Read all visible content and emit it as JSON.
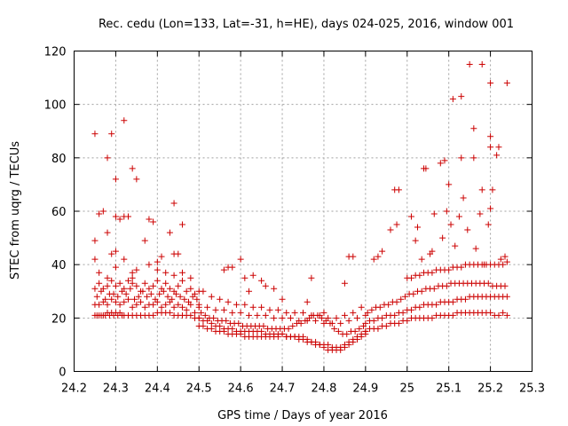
{
  "chart_data": {
    "type": "scatter",
    "title": "Rec. cedu (Lon=133, Lat=-31, h=HE), days 024-025, 2016, window 001",
    "xlabel": "GPS time / Days of year 2016",
    "ylabel": "STEC from uqrg / TECUs",
    "xlim": [
      24.2,
      25.3
    ],
    "ylim": [
      0,
      120
    ],
    "xticks": [
      "24.2",
      "24.3",
      "24.4",
      "24.5",
      "24.6",
      "24.7",
      "24.8",
      "24.9",
      "25",
      "25.1",
      "25.2",
      "25.3"
    ],
    "yticks": [
      "0",
      "20",
      "40",
      "60",
      "80",
      "100",
      "120"
    ],
    "grid": true,
    "marker": "plus",
    "color": "#cc0000",
    "series": [
      {
        "name": "STEC",
        "x": [
          24.25,
          24.255,
          24.26,
          24.265,
          24.27,
          24.275,
          24.28,
          24.285,
          24.29,
          24.295,
          24.3,
          24.305,
          24.31,
          24.315,
          24.32,
          24.33,
          24.34,
          24.35,
          24.36,
          24.37,
          24.38,
          24.39,
          24.4,
          24.41,
          24.42,
          24.43,
          24.44,
          24.45,
          24.46,
          24.47,
          24.48,
          24.49,
          24.5,
          24.25,
          24.26,
          24.27,
          24.28,
          24.29,
          24.3,
          24.31,
          24.32,
          24.33,
          24.34,
          24.35,
          24.36,
          24.37,
          24.38,
          24.39,
          24.4,
          24.41,
          24.42,
          24.43,
          24.44,
          24.45,
          24.46,
          24.47,
          24.48,
          24.49,
          24.5,
          24.255,
          24.265,
          24.275,
          24.285,
          24.295,
          24.305,
          24.315,
          24.325,
          24.335,
          24.345,
          24.355,
          24.365,
          24.375,
          24.385,
          24.395,
          24.405,
          24.415,
          24.425,
          24.435,
          24.445,
          24.455,
          24.465,
          24.475,
          24.485,
          24.495,
          24.25,
          24.26,
          24.27,
          24.28,
          24.29,
          24.3,
          24.31,
          24.32,
          24.33,
          24.34,
          24.35,
          24.36,
          24.37,
          24.38,
          24.39,
          24.4,
          24.41,
          24.42,
          24.43,
          24.44,
          24.45,
          24.46,
          24.47,
          24.48,
          24.49,
          24.5,
          24.25,
          24.26,
          24.28,
          24.3,
          24.32,
          24.34,
          24.38,
          24.4,
          24.42,
          24.44,
          24.46,
          24.48,
          24.25,
          24.26,
          24.28,
          24.29,
          24.3,
          24.31,
          24.32,
          24.34,
          24.35,
          24.37,
          24.38,
          24.4,
          24.41,
          24.43,
          24.44,
          24.45,
          24.5,
          24.51,
          24.52,
          24.53,
          24.54,
          24.55,
          24.56,
          24.57,
          24.58,
          24.59,
          24.6,
          24.61,
          24.62,
          24.63,
          24.64,
          24.65,
          24.66,
          24.67,
          24.68,
          24.69,
          24.7,
          24.71,
          24.72,
          24.73,
          24.74,
          24.75,
          24.76,
          24.77,
          24.78,
          24.79,
          24.8,
          24.81,
          24.82,
          24.83,
          24.84,
          24.85,
          24.86,
          24.87,
          24.88,
          24.89,
          24.9,
          24.5,
          24.51,
          24.52,
          24.53,
          24.54,
          24.55,
          24.56,
          24.57,
          24.58,
          24.59,
          24.6,
          24.61,
          24.62,
          24.63,
          24.64,
          24.65,
          24.66,
          24.67,
          24.68,
          24.69,
          24.7,
          24.71,
          24.72,
          24.73,
          24.74,
          24.75,
          24.76,
          24.77,
          24.78,
          24.79,
          24.8,
          24.81,
          24.82,
          24.83,
          24.84,
          24.85,
          24.86,
          24.87,
          24.88,
          24.89,
          24.9,
          24.505,
          24.515,
          24.525,
          24.535,
          24.545,
          24.555,
          24.565,
          24.575,
          24.585,
          24.595,
          24.605,
          24.615,
          24.625,
          24.635,
          24.645,
          24.655,
          24.665,
          24.675,
          24.685,
          24.695,
          24.705,
          24.715,
          24.725,
          24.735,
          24.745,
          24.755,
          24.765,
          24.775,
          24.785,
          24.795,
          24.805,
          24.815,
          24.825,
          24.835,
          24.845,
          24.855,
          24.865,
          24.875,
          24.885,
          24.895,
          24.5,
          24.52,
          24.54,
          24.56,
          24.58,
          24.6,
          24.62,
          24.64,
          24.66,
          24.68,
          24.7,
          24.72,
          24.74,
          24.76,
          24.78,
          24.8,
          24.82,
          24.84,
          24.86,
          24.88,
          24.9,
          24.51,
          24.53,
          24.55,
          24.57,
          24.59,
          24.61,
          24.63,
          24.65,
          24.67,
          24.69,
          24.71,
          24.73,
          24.75,
          24.77,
          24.79,
          24.81,
          24.83,
          24.85,
          24.87,
          24.89,
          24.56,
          24.57,
          24.58,
          24.6,
          24.61,
          24.62,
          24.63,
          24.65,
          24.66,
          24.68,
          24.7,
          24.76,
          24.77,
          24.8,
          24.85,
          24.86,
          24.9,
          24.91,
          24.92,
          24.93,
          24.94,
          24.95,
          24.96,
          24.97,
          24.98,
          24.99,
          25.0,
          25.01,
          25.02,
          25.03,
          25.04,
          25.05,
          25.06,
          25.07,
          25.08,
          25.09,
          25.1,
          25.11,
          25.12,
          25.13,
          25.14,
          25.15,
          25.16,
          25.17,
          25.18,
          25.19,
          25.2,
          25.21,
          25.22,
          25.23,
          25.24,
          24.9,
          24.91,
          24.92,
          24.93,
          24.94,
          24.95,
          24.96,
          24.97,
          24.98,
          24.99,
          25.0,
          25.01,
          25.02,
          25.03,
          25.04,
          25.05,
          25.06,
          25.07,
          25.08,
          25.09,
          25.1,
          25.11,
          25.12,
          25.13,
          25.14,
          25.15,
          25.16,
          25.17,
          25.18,
          25.19,
          25.2,
          25.21,
          25.22,
          25.23,
          25.24,
          24.905,
          24.915,
          24.925,
          24.935,
          24.945,
          24.955,
          24.965,
          24.975,
          24.985,
          24.995,
          25.005,
          25.015,
          25.025,
          25.035,
          25.045,
          25.055,
          25.065,
          25.075,
          25.085,
          25.095,
          25.105,
          25.115,
          25.125,
          25.135,
          25.145,
          25.155,
          25.165,
          25.175,
          25.185,
          25.195,
          25.205,
          25.215,
          25.225,
          25.235,
          25.0,
          25.01,
          25.02,
          25.03,
          25.04,
          25.05,
          25.06,
          25.07,
          25.08,
          25.09,
          25.1,
          25.11,
          25.12,
          25.13,
          25.14,
          25.15,
          25.16,
          25.17,
          25.18,
          25.19,
          25.2,
          25.21,
          25.22,
          25.23,
          25.24,
          24.87,
          24.92,
          24.93,
          24.96,
          24.975,
          25.01,
          25.025,
          25.035,
          25.045,
          25.055,
          25.065,
          25.085,
          25.095,
          25.105,
          25.115,
          25.125,
          25.135,
          25.145,
          25.165,
          25.175,
          25.185,
          25.195,
          25.2,
          25.205,
          25.215,
          25.225,
          25.235,
          24.94,
          24.97,
          25.02,
          25.06,
          25.08,
          25.1,
          25.13,
          25.16,
          25.18,
          25.2,
          25.22,
          25.24
        ],
        "y": [
          21,
          21,
          21,
          21,
          21,
          21,
          22,
          21,
          22,
          21,
          22,
          21,
          22,
          21,
          21,
          21,
          21,
          21,
          21,
          21,
          21,
          21,
          22,
          22,
          22,
          22,
          21,
          21,
          21,
          21,
          21,
          20,
          20,
          25,
          25,
          26,
          25,
          27,
          26,
          25,
          26,
          27,
          24,
          25,
          26,
          24,
          25,
          25,
          26,
          24,
          25,
          26,
          24,
          25,
          24,
          23,
          25,
          22,
          24,
          28,
          30,
          27,
          29,
          29,
          28,
          30,
          29,
          31,
          27,
          28,
          30,
          28,
          29,
          27,
          29,
          30,
          28,
          27,
          29,
          28,
          27,
          26,
          28,
          27,
          31,
          33,
          31,
          32,
          34,
          32,
          33,
          31,
          34,
          33,
          32,
          30,
          33,
          31,
          32,
          34,
          31,
          33,
          31,
          30,
          32,
          34,
          30,
          31,
          29,
          30,
          42,
          37,
          35,
          39,
          42,
          37,
          40,
          38,
          37,
          36,
          37,
          35,
          49,
          59,
          52,
          44,
          45,
          57,
          58,
          35,
          38,
          49,
          57,
          41,
          43,
          52,
          44,
          44,
          20,
          19,
          19,
          18,
          17,
          17,
          16,
          16,
          16,
          15,
          15,
          15,
          15,
          15,
          15,
          15,
          14,
          14,
          14,
          14,
          14,
          13,
          13,
          13,
          12,
          12,
          11,
          11,
          10,
          10,
          9,
          8,
          8,
          8,
          8,
          9,
          10,
          11,
          12,
          13,
          14,
          17,
          17,
          16,
          16,
          15,
          15,
          15,
          14,
          14,
          14,
          14,
          13,
          13,
          13,
          13,
          13,
          13,
          13,
          13,
          13,
          14,
          13,
          13,
          13,
          13,
          13,
          12,
          11,
          11,
          10,
          10,
          10,
          9,
          9,
          9,
          10,
          11,
          12,
          13,
          14,
          15,
          22,
          21,
          20,
          20,
          19,
          19,
          19,
          18,
          18,
          18,
          17,
          17,
          17,
          17,
          17,
          17,
          16,
          16,
          16,
          16,
          16,
          16,
          17,
          18,
          18,
          19,
          20,
          21,
          21,
          20,
          19,
          18,
          16,
          15,
          14,
          14,
          15,
          15,
          16,
          17,
          25,
          24,
          23,
          23,
          22,
          22,
          21,
          21,
          21,
          20,
          20,
          20,
          19,
          19,
          19,
          18,
          18,
          18,
          19,
          20,
          21,
          30,
          28,
          27,
          26,
          25,
          25,
          24,
          24,
          23,
          23,
          22,
          22,
          22,
          21,
          21,
          20,
          20,
          21,
          22,
          24,
          38,
          39,
          39,
          42,
          35,
          30,
          36,
          34,
          32,
          31,
          27,
          26,
          35,
          22,
          33,
          43,
          15,
          16,
          16,
          16,
          17,
          17,
          18,
          18,
          18,
          19,
          19,
          20,
          20,
          20,
          20,
          20,
          20,
          21,
          21,
          21,
          21,
          21,
          22,
          22,
          22,
          22,
          22,
          22,
          22,
          22,
          22,
          21,
          21,
          22,
          21,
          18,
          19,
          19,
          20,
          20,
          21,
          21,
          21,
          22,
          22,
          23,
          23,
          24,
          24,
          25,
          25,
          25,
          25,
          26,
          26,
          26,
          26,
          27,
          27,
          27,
          28,
          28,
          28,
          28,
          28,
          28,
          28,
          28,
          28,
          28,
          22,
          23,
          24,
          24,
          25,
          25,
          26,
          26,
          27,
          28,
          29,
          29,
          30,
          30,
          31,
          31,
          31,
          32,
          32,
          32,
          33,
          33,
          33,
          33,
          33,
          33,
          33,
          33,
          33,
          33,
          32,
          32,
          32,
          32,
          35,
          35,
          36,
          36,
          37,
          37,
          37,
          38,
          38,
          38,
          38,
          39,
          39,
          39,
          40,
          40,
          40,
          40,
          40,
          40,
          40,
          40,
          40,
          40,
          41,
          43,
          42,
          43,
          53,
          55,
          58,
          54,
          42,
          76,
          44,
          59,
          50,
          60,
          55,
          47,
          58,
          65,
          53,
          46,
          59,
          40,
          55,
          61,
          68,
          81,
          42,
          43,
          45,
          68,
          49,
          45,
          78,
          70,
          103,
          80,
          115,
          88,
          84,
          108
        ],
        "outliers": [
          {
            "x": 24.25,
            "y": 89
          },
          {
            "x": 24.29,
            "y": 89
          },
          {
            "x": 24.32,
            "y": 94
          },
          {
            "x": 24.28,
            "y": 80
          },
          {
            "x": 24.3,
            "y": 72
          },
          {
            "x": 24.34,
            "y": 76
          },
          {
            "x": 24.35,
            "y": 72
          },
          {
            "x": 24.27,
            "y": 60
          },
          {
            "x": 24.3,
            "y": 58
          },
          {
            "x": 24.33,
            "y": 58
          },
          {
            "x": 24.44,
            "y": 63
          },
          {
            "x": 24.39,
            "y": 56
          },
          {
            "x": 24.46,
            "y": 55
          },
          {
            "x": 25.13,
            "y": 80
          },
          {
            "x": 25.09,
            "y": 79
          },
          {
            "x": 25.11,
            "y": 102
          },
          {
            "x": 25.15,
            "y": 115
          },
          {
            "x": 25.16,
            "y": 91
          },
          {
            "x": 25.2,
            "y": 108
          },
          {
            "x": 25.18,
            "y": 68
          },
          {
            "x": 24.98,
            "y": 68
          },
          {
            "x": 25.04,
            "y": 76
          },
          {
            "x": 25.2,
            "y": 84
          }
        ]
      }
    ]
  }
}
